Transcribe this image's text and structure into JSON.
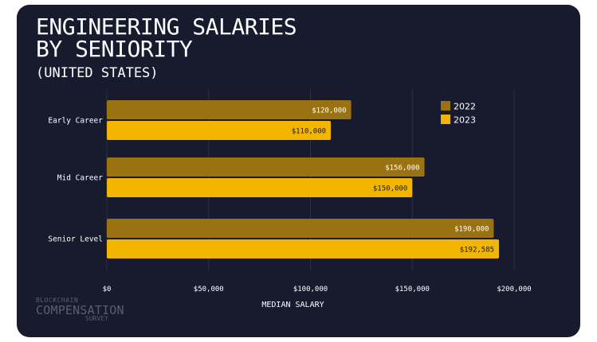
{
  "colors": {
    "card_bg": "#181a2e",
    "grid": "#2c2f45",
    "text": "#ffffff",
    "bar_2022": "#9b7212",
    "bar_2023": "#f2b600"
  },
  "logo": {
    "line1": "BLOCKCHAIN",
    "line2": "COMPENSATION",
    "line3": "SURVEY"
  },
  "chart_data": {
    "type": "bar",
    "orientation": "horizontal",
    "title": "ENGINEERING SALARIES BY SENIORITY",
    "title_lines": [
      "ENGINEERING SALARIES",
      "BY SENIORITY"
    ],
    "subtitle": "(UNITED STATES)",
    "xlabel": "MEDIAN SALARY",
    "ylabel": "",
    "xlim": [
      0,
      200000
    ],
    "xticks": [
      0,
      50000,
      100000,
      150000,
      200000
    ],
    "xtick_labels": [
      "$0",
      "$50,000",
      "$100,000",
      "$150,000",
      "$200,000"
    ],
    "grid": true,
    "legend_position": "top-right",
    "categories": [
      "Early Career",
      "Mid Career",
      "Senior Level"
    ],
    "series": [
      {
        "name": "2022",
        "color": "#9b7212",
        "values": [
          120000,
          156000,
          190000
        ],
        "labels": [
          "$120,000",
          "$156,000",
          "$190,000"
        ]
      },
      {
        "name": "2023",
        "color": "#f2b600",
        "values": [
          110000,
          150000,
          192585
        ],
        "labels": [
          "$110,000",
          "$150,000",
          "$192,585"
        ]
      }
    ]
  }
}
